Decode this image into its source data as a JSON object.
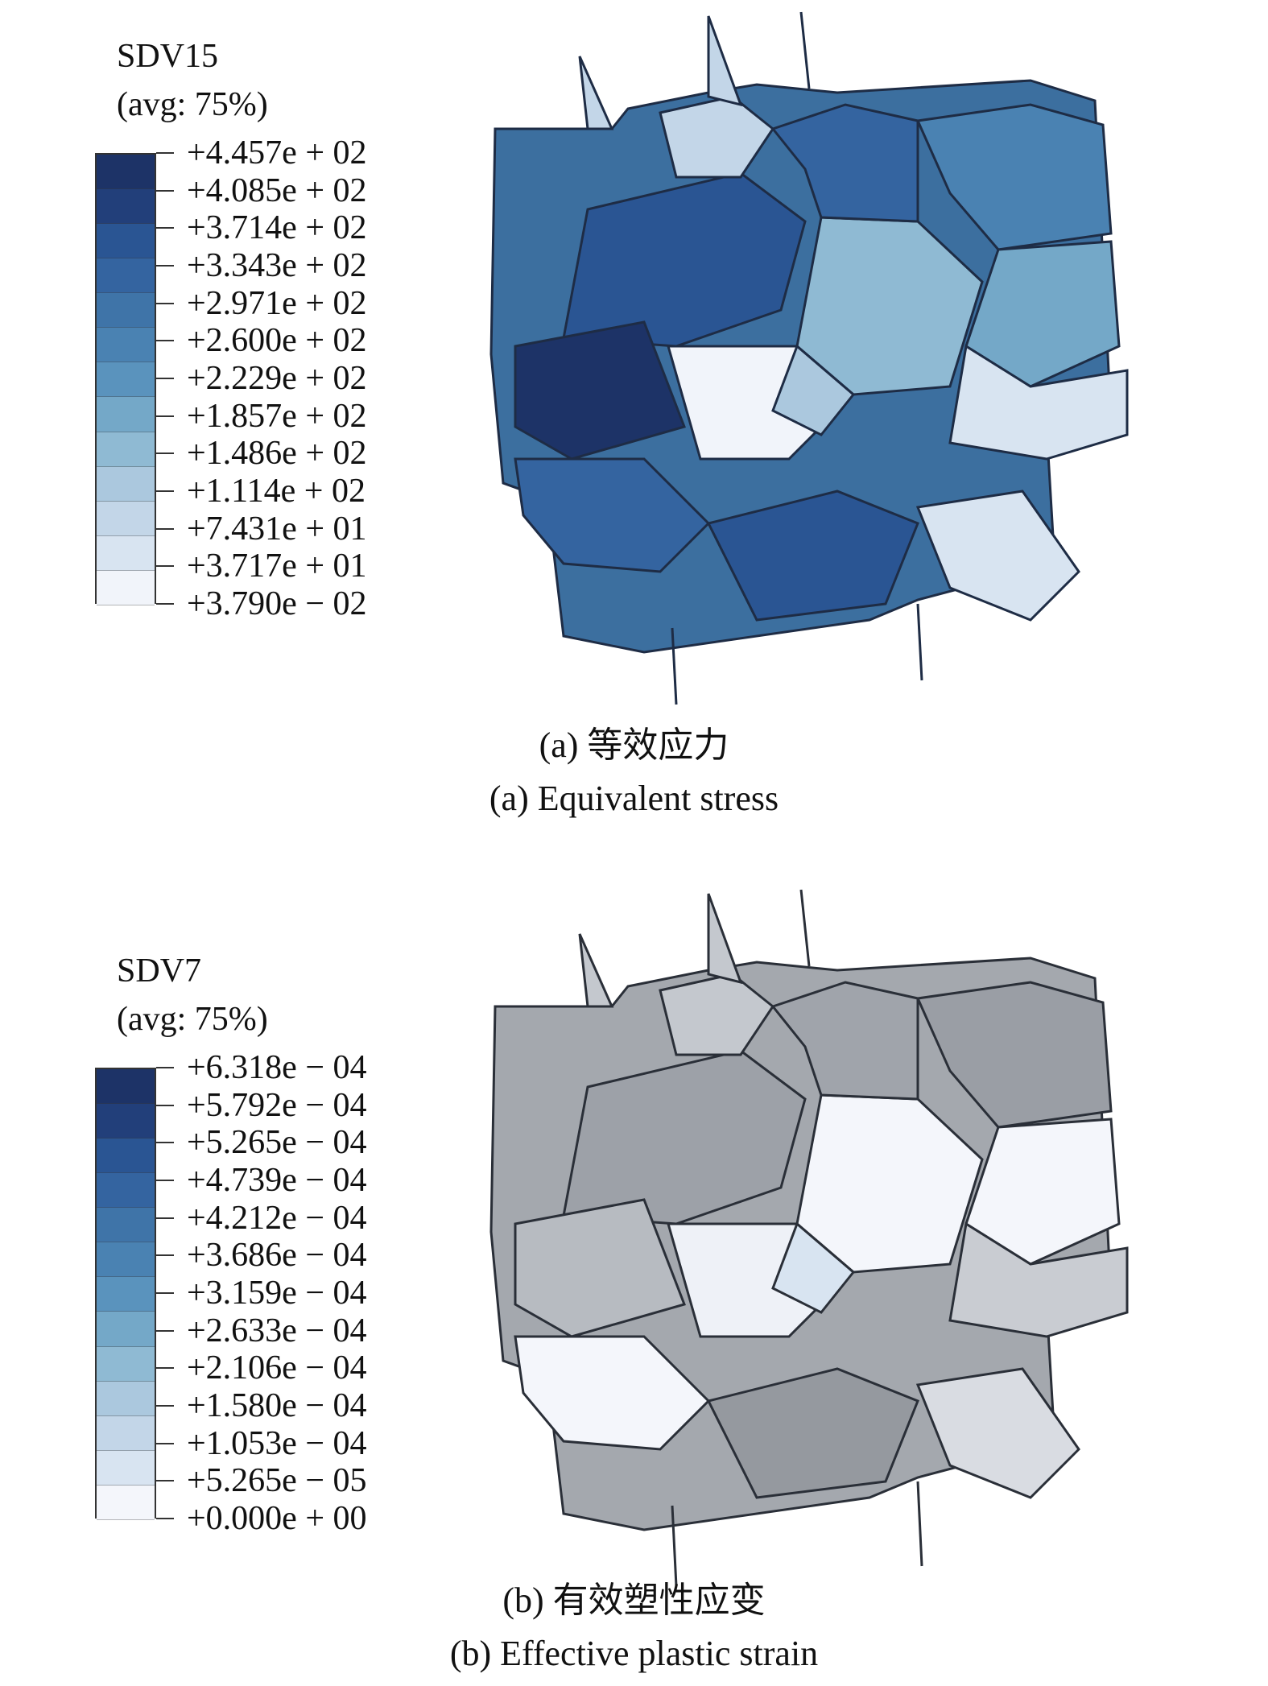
{
  "panels": [
    {
      "id": "a",
      "legend": {
        "variable": "SDV15",
        "averaging": "(avg: 75%)",
        "labels": [
          "+4.457e + 02",
          "+4.085e + 02",
          "+3.714e + 02",
          "+3.343e + 02",
          "+2.971e + 02",
          "+2.600e + 02",
          "+2.229e + 02",
          "+1.857e + 02",
          "+1.486e + 02",
          "+1.114e + 02",
          "+7.431e + 01",
          "+3.717e + 01",
          "+3.790e − 02"
        ],
        "colors": [
          "#1d3367",
          "#223f7a",
          "#2a5593",
          "#3464a0",
          "#3f74a8",
          "#4a82b2",
          "#5a93bd",
          "#74a8c8",
          "#8fbad3",
          "#abc8de",
          "#c3d6e8",
          "#d8e4f1",
          "#f1f4fa"
        ]
      },
      "caption_cn": "(a) 等效应力",
      "caption_en": "(a) Equivalent stress"
    },
    {
      "id": "b",
      "legend": {
        "variable": "SDV7",
        "averaging": "(avg: 75%)",
        "labels": [
          "+6.318e − 04",
          "+5.792e − 04",
          "+5.265e − 04",
          "+4.739e − 04",
          "+4.212e − 04",
          "+3.686e − 04",
          "+3.159e − 04",
          "+2.633e − 04",
          "+2.106e − 04",
          "+1.580e − 04",
          "+1.053e − 04",
          "+5.265e − 05",
          "+0.000e + 00"
        ],
        "colors": [
          "#1d3367",
          "#223f7a",
          "#2a5593",
          "#3464a0",
          "#3f74a8",
          "#4a82b2",
          "#5a93bd",
          "#74a8c8",
          "#8fbad3",
          "#abc8de",
          "#c3d6e8",
          "#d8e4f1",
          "#f4f6fb"
        ]
      },
      "caption_cn": "(b) 有效塑性应变",
      "caption_en": "(b) Effective plastic strain"
    }
  ]
}
